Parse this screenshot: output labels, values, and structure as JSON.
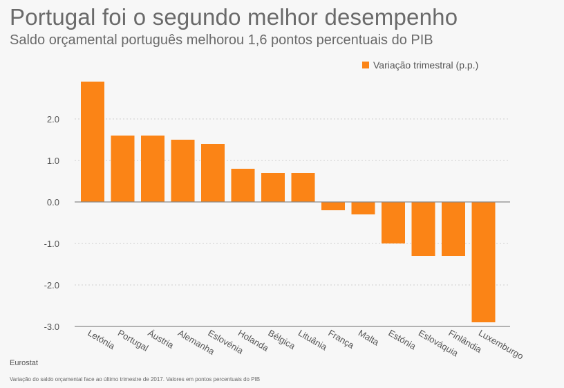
{
  "title": "Portugal foi o segundo melhor desempenho",
  "subtitle": "Saldo orçamental português melhorou 1,6 pontos percentuais do PIB",
  "source": "Eurostat",
  "note": "Variação do saldo orçamental face ao último trimestre de 2017. Valores em pontos percentuais do PIB",
  "colors": {
    "bar": "#fb8416",
    "grid": "#cfcfcf",
    "axis": "#888888"
  },
  "chart_data": {
    "type": "bar",
    "title": "Portugal foi o segundo melhor desempenho",
    "subtitle": "Saldo orçamental português melhorou 1,6 pontos percentuais do PIB",
    "xlabel": "",
    "ylabel": "",
    "ylim": [
      -3.0,
      3.0
    ],
    "yticks": [
      2.0,
      1.0,
      0.0,
      -1.0,
      -2.0,
      -3.0
    ],
    "ytick_labels": [
      "2.0",
      "1.0",
      "0.0",
      "-1.0",
      "-2.0",
      "-3.0"
    ],
    "grid": true,
    "legend_position": "top-right",
    "categories": [
      "Letónia",
      "Portugal",
      "Áustria",
      "Alemanha",
      "Eslovénia",
      "Holanda",
      "Bélgica",
      "Lituânia",
      "França",
      "Malta",
      "Estónia",
      "Eslováquia",
      "Finlândia",
      "Luxemburgo"
    ],
    "series": [
      {
        "name": "Variação trimestral (p.p.)",
        "values": [
          2.9,
          1.6,
          1.6,
          1.5,
          1.4,
          0.8,
          0.7,
          0.7,
          -0.2,
          -0.3,
          -1.0,
          -1.3,
          -1.3,
          -2.9
        ]
      }
    ]
  }
}
